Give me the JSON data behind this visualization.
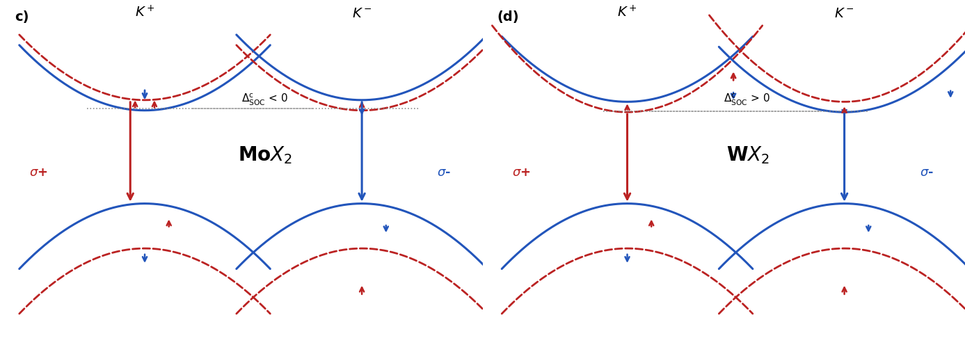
{
  "fig_width": 13.87,
  "fig_height": 4.96,
  "bg_color": "#ffffff",
  "blue": "#2255bb",
  "red": "#bb2222",
  "darkred": "#8B0000",
  "gray": "#888888",
  "panel_c": {
    "label": "c)",
    "kplus": "K^+",
    "kminus": "K^-",
    "soc": "$\\Delta_{\\rm SOC}^{\\rm c}$ < 0",
    "material": "Mo$X_2$",
    "sp": "$\\sigma$+",
    "sm": "$\\sigma$-"
  },
  "panel_d": {
    "label": "(d)",
    "kplus": "K^+",
    "kminus": "K^-",
    "soc": "$\\Delta_{\\rm SOC}^{\\rm c}$ > 0",
    "material": "W$X_2$",
    "sp": "$\\sigma$+",
    "sm": "$\\sigma$-"
  }
}
